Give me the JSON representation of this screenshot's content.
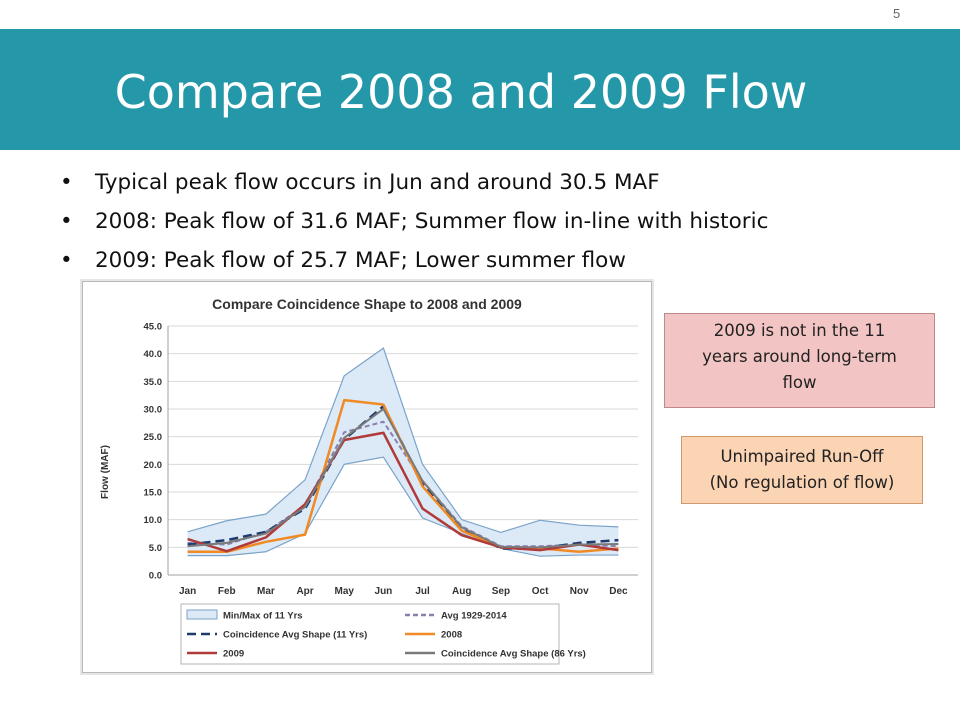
{
  "slide": {
    "page_number": "5",
    "title": "Compare 2008 and 2009 Flow",
    "bullets": [
      "Typical peak flow occurs in Jun and around 30.5 MAF",
      "2008: Peak flow of 31.6 MAF; Summer flow in-line with historic",
      "2009: Peak flow of 25.7 MAF; Lower summer flow"
    ],
    "bullet_symbol": "•",
    "callouts": [
      {
        "line1": "2009 is not in the 11",
        "line2": "years around long-term",
        "line3": "flow"
      },
      {
        "line1": "Unimpaired Run-Off",
        "line2": "(No regulation of flow)"
      }
    ],
    "colors": {
      "title_bar": "#2497a9",
      "callout_pink": "#f2c4c4",
      "callout_peach": "#fbd4b4"
    }
  },
  "chart_data": {
    "type": "line",
    "title": "Compare Coincidence Shape to 2008 and 2009",
    "ylabel": "Flow (MAF)",
    "xlabel": "",
    "categories": [
      "Jan",
      "Feb",
      "Mar",
      "Apr",
      "May",
      "Jun",
      "Jul",
      "Aug",
      "Sep",
      "Oct",
      "Nov",
      "Dec"
    ],
    "ylim": [
      0,
      45
    ],
    "yticks": [
      "0.0",
      "5.0",
      "10.0",
      "15.0",
      "20.0",
      "25.0",
      "30.0",
      "35.0",
      "40.0",
      "45.0"
    ],
    "grid": "horizontal",
    "legend_position": "bottom",
    "band": {
      "name": "Min/Max of 11 Yrs",
      "fill": "#dce9f6",
      "stroke": "#7ba3c8",
      "min": [
        3.5,
        3.5,
        4.2,
        7.5,
        20.0,
        21.3,
        10.3,
        7.5,
        4.8,
        3.4,
        3.6,
        3.6
      ],
      "max": [
        7.8,
        9.8,
        11.0,
        17.2,
        36.0,
        41.0,
        20.0,
        10.0,
        7.7,
        9.9,
        9.0,
        8.7
      ]
    },
    "series": [
      {
        "name": "Avg 1929-2014",
        "color": "#8a7fb0",
        "dash": "5,3",
        "width": 2,
        "values": [
          5.8,
          5.5,
          7.8,
          12.5,
          25.8,
          27.7,
          17.0,
          8.8,
          5.2,
          5.2,
          5.5,
          5.2
        ]
      },
      {
        "name": "Coincidence Avg Shape (11 Yrs)",
        "color": "#1f3b6e",
        "dash": "9,5",
        "width": 2.5,
        "values": [
          5.5,
          6.3,
          7.8,
          12.0,
          24.5,
          30.5,
          16.5,
          8.5,
          4.8,
          4.8,
          5.8,
          6.3
        ]
      },
      {
        "name": "2008",
        "color": "#f08a24",
        "dash": "",
        "width": 2.5,
        "values": [
          4.2,
          4.2,
          6.0,
          7.3,
          31.6,
          30.8,
          16.0,
          8.0,
          5.0,
          4.8,
          4.2,
          4.8
        ]
      },
      {
        "name": "2009",
        "color": "#b03a3a",
        "dash": "",
        "width": 2.5,
        "values": [
          6.5,
          4.3,
          6.8,
          12.8,
          24.4,
          25.7,
          12.0,
          7.2,
          5.0,
          4.5,
          5.5,
          4.5
        ]
      },
      {
        "name": "Coincidence Avg Shape (86 Yrs)",
        "color": "#7a7a7a",
        "dash": "",
        "width": 2,
        "values": [
          5.2,
          5.8,
          7.5,
          12.3,
          24.8,
          30.0,
          17.0,
          8.6,
          5.1,
          5.0,
          5.5,
          5.6
        ]
      }
    ],
    "legend": [
      {
        "name": "Min/Max of 11 Yrs",
        "kind": "box",
        "color": "#7ba3c8",
        "fill": "#dce9f6"
      },
      {
        "name": "Avg 1929-2014",
        "kind": "line",
        "color": "#8a7fb0",
        "dash": "5,3"
      },
      {
        "name": "Coincidence Avg Shape (11 Yrs)",
        "kind": "line",
        "color": "#1f3b6e",
        "dash": "9,5"
      },
      {
        "name": "2008",
        "kind": "line",
        "color": "#f08a24",
        "dash": ""
      },
      {
        "name": "2009",
        "kind": "line",
        "color": "#b03a3a",
        "dash": ""
      },
      {
        "name": "Coincidence Avg Shape (86 Yrs)",
        "kind": "line",
        "color": "#7a7a7a",
        "dash": ""
      }
    ]
  }
}
